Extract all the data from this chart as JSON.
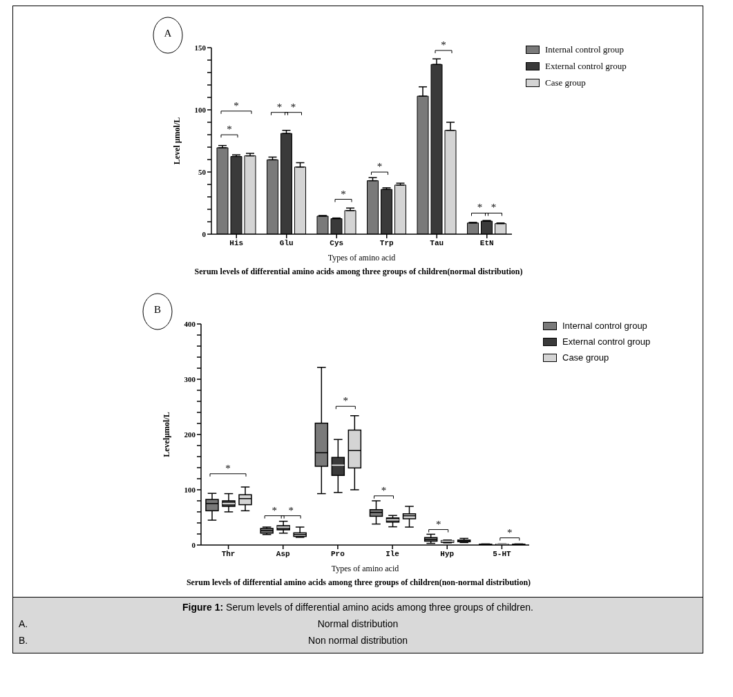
{
  "chart_data": [
    {
      "type": "bar",
      "title": "Serum levels of differential amino acids among three groups of children(normal distribution)",
      "xlabel": "Types of amino acid",
      "ylabel": "Level μmol/L",
      "categories": [
        "His",
        "Glu",
        "Cys",
        "Trp",
        "Tau",
        "EtN"
      ],
      "series": [
        {
          "name": "Internal control group",
          "color": "#7a7a7a",
          "values": [
            69.5,
            59.8,
            14.5,
            43,
            111,
            9
          ],
          "errors": [
            [
              69.5,
              71.3
            ],
            [
              59.8,
              62
            ],
            [
              14.5,
              15
            ],
            [
              43,
              45.5
            ],
            [
              111,
              118.5
            ],
            [
              9,
              9.5
            ]
          ]
        },
        {
          "name": "External control group",
          "color": "#3a3a3a",
          "values": [
            62.5,
            81,
            12.5,
            36,
            136.5,
            10.5
          ],
          "errors": [
            [
              62.5,
              63.8
            ],
            [
              81,
              83.5
            ],
            [
              12.5,
              13
            ],
            [
              36,
              37.3
            ],
            [
              136.5,
              141
            ],
            [
              10.5,
              11
            ]
          ]
        },
        {
          "name": "Case group",
          "color": "#d4d4d4",
          "values": [
            63,
            54,
            19,
            39.5,
            83.5,
            8.5
          ],
          "errors": [
            [
              63,
              65
            ],
            [
              54,
              57.5
            ],
            [
              19,
              21
            ],
            [
              39.5,
              41
            ],
            [
              83.5,
              90
            ],
            [
              8.5,
              9
            ]
          ]
        }
      ],
      "ylim": [
        0,
        150
      ],
      "yticks": [
        0,
        {
          "value": 10,
          "label": null
        },
        {
          "value": 20,
          "label": null
        },
        {
          "value": 30,
          "label": null
        },
        {
          "value": 40,
          "label": null
        },
        50,
        {
          "value": 60,
          "label": null
        },
        {
          "value": 70,
          "label": null
        },
        {
          "value": 80,
          "label": null
        },
        {
          "value": 90,
          "label": null
        },
        100,
        {
          "value": 110,
          "label": null
        },
        {
          "value": 120,
          "label": null
        },
        {
          "value": 130,
          "label": null
        },
        {
          "value": 140,
          "label": null
        },
        150
      ],
      "legend": "top right",
      "annotations": [
        "A",
        "*",
        "*",
        "*",
        "*",
        "*",
        "*",
        "*",
        "*",
        "*"
      ]
    },
    {
      "type": "box",
      "title": "Serum levels of differential amino acids among three groups of children(non-normal distribution)",
      "xlabel": "Types of amino acid",
      "ylabel": "Levelμmol/L",
      "categories": [
        "Thr",
        "Asp",
        "Pro",
        "Ile",
        "Hyp",
        "5-HT"
      ],
      "series": [
        {
          "name": "Internal control group",
          "color": "#7a7a7a",
          "boxes": [
            {
              "low": 45,
              "q1": 62,
              "median": 75,
              "q3": 82.5,
              "high": 93.5
            },
            {
              "low": 19,
              "q1": 21.5,
              "median": 26,
              "q3": 30,
              "high": 32.5
            },
            {
              "low": 93,
              "q1": 142.5,
              "median": 167,
              "q3": 220.5,
              "high": 321.5
            },
            {
              "low": 38,
              "q1": 52,
              "median": 59,
              "q3": 64,
              "high": 80
            },
            {
              "low": 3,
              "q1": 7,
              "median": 10,
              "q3": 13.5,
              "high": 19.5
            },
            {
              "low": 0,
              "q1": 0.5,
              "median": 1,
              "q3": 1.5,
              "high": 2
            }
          ]
        },
        {
          "name": "External control group",
          "color": "#3a3a3a",
          "boxes": [
            {
              "low": 60,
              "q1": 70,
              "median": 75,
              "q3": 80,
              "high": 93
            },
            {
              "low": 21.5,
              "q1": 27.5,
              "median": 32.5,
              "q3": 35,
              "high": 43
            },
            {
              "low": 95,
              "q1": 126,
              "median": 144.5,
              "q3": 158.5,
              "high": 191
            },
            {
              "low": 33,
              "q1": 41.5,
              "median": 45.5,
              "q3": 49,
              "high": 53.5
            },
            {
              "low": 4,
              "q1": 5,
              "median": 7,
              "q3": 8,
              "high": 9
            },
            {
              "low": 0,
              "q1": 0.5,
              "median": 1,
              "q3": 1.5,
              "high": 2
            }
          ]
        },
        {
          "name": "Case group",
          "color": "#d4d4d4",
          "boxes": [
            {
              "low": 62,
              "q1": 73,
              "median": 84,
              "q3": 91,
              "high": 105
            },
            {
              "low": 14,
              "q1": 15.5,
              "median": 19,
              "q3": 22,
              "high": 32.5
            },
            {
              "low": 100,
              "q1": 139.5,
              "median": 171,
              "q3": 208,
              "high": 234
            },
            {
              "low": 32.5,
              "q1": 47.5,
              "median": 53,
              "q3": 56.5,
              "high": 70
            },
            {
              "low": 4.5,
              "q1": 6,
              "median": 7.5,
              "q3": 9,
              "high": 12
            },
            {
              "low": 0,
              "q1": 0.5,
              "median": 1,
              "q3": 1.5,
              "high": 2
            }
          ]
        }
      ],
      "ylim": [
        0,
        400
      ],
      "yticks": [
        0,
        {
          "value": 20,
          "label": null
        },
        {
          "value": 40,
          "label": null
        },
        {
          "value": 60,
          "label": null
        },
        {
          "value": 80,
          "label": null
        },
        100,
        {
          "value": 120,
          "label": null
        },
        {
          "value": 140,
          "label": null
        },
        {
          "value": 160,
          "label": null
        },
        {
          "value": 180,
          "label": null
        },
        200,
        {
          "value": 220,
          "label": null
        },
        {
          "value": 240,
          "label": null
        },
        {
          "value": 260,
          "label": null
        },
        {
          "value": 280,
          "label": null
        },
        300,
        {
          "value": 320,
          "label": null
        },
        {
          "value": 340,
          "label": null
        },
        {
          "value": 360,
          "label": null
        },
        {
          "value": 380,
          "label": null
        },
        400
      ],
      "legend": "top right",
      "annotations": [
        "B",
        "*",
        "*",
        "*",
        "*",
        "*",
        "*",
        "*",
        "Figure 1: Serum levels of differential amino acids among three groups of children.",
        "A.",
        "Normal distribution",
        "B.",
        "Non normal distribution"
      ]
    }
  ]
}
